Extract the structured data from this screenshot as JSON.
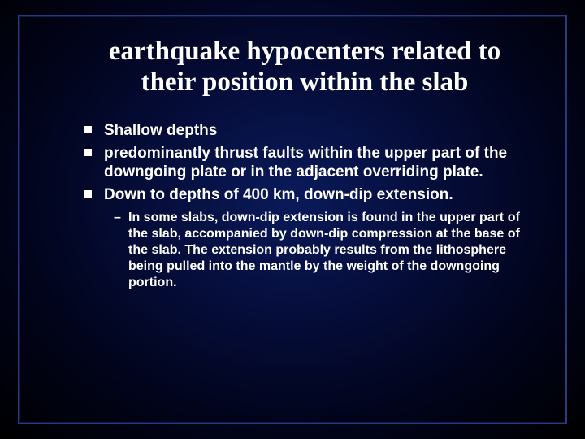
{
  "slide": {
    "title": "earthquake hypocenters related to their position within the slab",
    "bullets": [
      {
        "text": "Shallow depths"
      },
      {
        "text": "predominantly thrust faults within the upper part of the downgoing plate or in the adjacent overriding plate."
      },
      {
        "text": "Down to depths of 400 km, down-dip extension.",
        "sub": [
          "In some slabs, down-dip extension is found in the upper part of the slab, accompanied by down-dip compression at the base of the slab. The extension probably results from the lithosphere being pulled into the mantle by the weight of the downgoing portion."
        ]
      }
    ],
    "style": {
      "bg_gradient_inner": "#0a1a5a",
      "bg_gradient_mid": "#050d3a",
      "bg_gradient_outer": "#000000",
      "frame_border_color": "#2a3a7a",
      "title_font": "Times New Roman",
      "title_fontsize_pt": 25,
      "body_font": "Arial",
      "body_fontsize_pt": 14,
      "sub_fontsize_pt": 12,
      "text_color": "#ffffff",
      "bullet_marker": "square",
      "sub_marker": "–"
    }
  }
}
